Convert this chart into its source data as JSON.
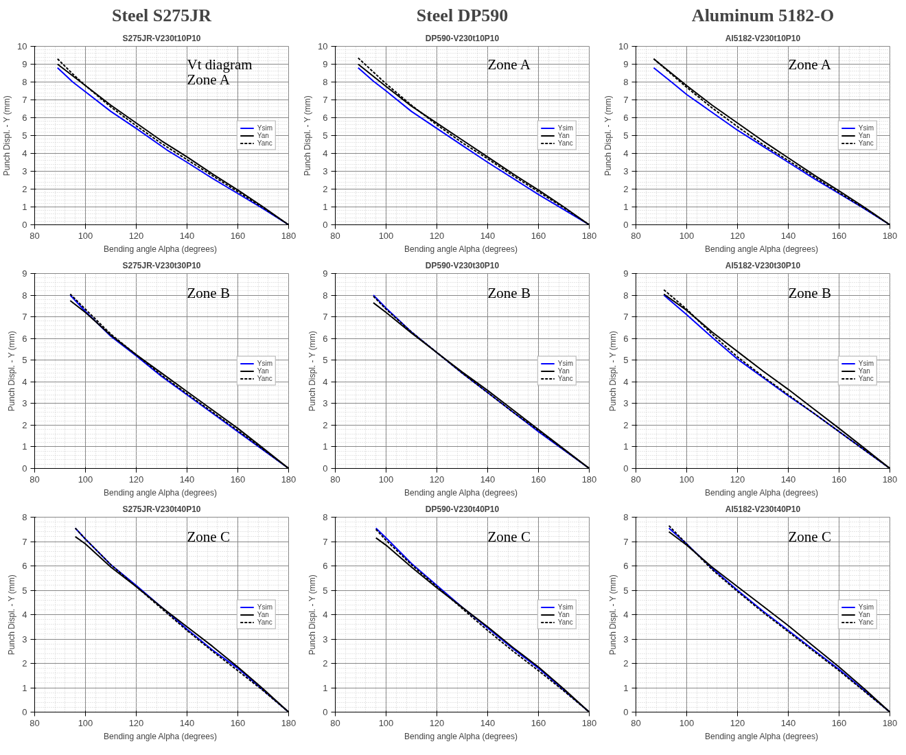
{
  "chart_data": [
    {
      "type": "line",
      "subtitle": "Steel S275JR",
      "title": "S275JR-V230t10P10",
      "xlabel": "Bending angle Alpha  (degrees)",
      "ylabel": "Punch Displ. - Y (mm)",
      "annotations": [
        "Vt diagram",
        "Zone A"
      ],
      "xlim": [
        80,
        180
      ],
      "ylim": [
        0,
        10
      ],
      "xticks": [
        80,
        100,
        120,
        140,
        160,
        180
      ],
      "yticks": [
        0,
        1,
        2,
        3,
        4,
        5,
        6,
        7,
        8,
        9,
        10
      ],
      "grid": true,
      "legend": "right",
      "marker": "none",
      "series": [
        {
          "name": "Ysim",
          "color": "#0000ff",
          "line_style": "solid",
          "x": [
            89,
            95,
            100,
            110,
            120,
            132,
            140,
            150,
            160,
            170,
            180
          ],
          "values": [
            8.8,
            8.0,
            7.45,
            6.35,
            5.4,
            4.2,
            3.5,
            2.6,
            1.75,
            0.9,
            0
          ]
        },
        {
          "name": "Yan",
          "color": "#000000",
          "line_style": "solid",
          "x": [
            89,
            100,
            110,
            120,
            130,
            140,
            150,
            160,
            170,
            180
          ],
          "values": [
            9.0,
            7.8,
            6.7,
            5.7,
            4.7,
            3.8,
            2.85,
            1.95,
            1.0,
            0
          ]
        },
        {
          "name": "Yanc",
          "color": "#000000",
          "line_style": "dashed",
          "x": [
            89,
            95,
            100,
            110,
            120,
            130,
            140,
            150,
            160,
            170,
            180
          ],
          "values": [
            9.3,
            8.45,
            7.8,
            6.6,
            5.55,
            4.55,
            3.65,
            2.75,
            1.85,
            0.95,
            0
          ]
        }
      ]
    },
    {
      "type": "line",
      "subtitle": "Steel DP590",
      "title": "DP590-V230t10P10",
      "xlabel": "Bending angle Alpha  (degrees)",
      "ylabel": "Punch Displ. - Y (mm)",
      "annotations": [
        "Zone A"
      ],
      "xlim": [
        80,
        180
      ],
      "ylim": [
        0,
        10
      ],
      "xticks": [
        80,
        100,
        120,
        140,
        160,
        180
      ],
      "yticks": [
        0,
        1,
        2,
        3,
        4,
        5,
        6,
        7,
        8,
        9,
        10
      ],
      "grid": true,
      "legend": "right",
      "marker": "none",
      "series": [
        {
          "name": "Ysim",
          "color": "#0000ff",
          "line_style": "solid",
          "x": [
            89,
            95,
            100,
            110,
            120,
            130,
            140,
            150,
            160,
            170,
            180
          ],
          "values": [
            8.8,
            8.05,
            7.5,
            6.35,
            5.4,
            4.45,
            3.5,
            2.6,
            1.7,
            0.85,
            0
          ]
        },
        {
          "name": "Yan",
          "color": "#000000",
          "line_style": "solid",
          "x": [
            89,
            100,
            110,
            120,
            130,
            140,
            150,
            160,
            170,
            180
          ],
          "values": [
            9.0,
            7.75,
            6.65,
            5.7,
            4.75,
            3.8,
            2.85,
            1.95,
            1.0,
            0
          ]
        },
        {
          "name": "Yanc",
          "color": "#000000",
          "line_style": "dashed",
          "x": [
            89,
            100,
            110,
            120,
            130,
            140,
            150,
            160,
            170,
            180
          ],
          "values": [
            9.35,
            7.9,
            6.7,
            5.6,
            4.6,
            3.7,
            2.75,
            1.85,
            0.95,
            0
          ]
        }
      ]
    },
    {
      "type": "line",
      "subtitle": "Aluminum 5182-O",
      "title": "Al5182-V230t10P10",
      "xlabel": "Bending angle Alpha  (degrees)",
      "ylabel": "Punch Displ. - Y (mm)",
      "annotations": [
        "Zone A"
      ],
      "xlim": [
        80,
        180
      ],
      "ylim": [
        0,
        10
      ],
      "xticks": [
        80,
        100,
        120,
        140,
        160,
        180
      ],
      "yticks": [
        0,
        1,
        2,
        3,
        4,
        5,
        6,
        7,
        8,
        9,
        10
      ],
      "grid": true,
      "legend": "right",
      "marker": "none",
      "series": [
        {
          "name": "Ysim",
          "color": "#0000ff",
          "line_style": "solid",
          "x": [
            87,
            94,
            100,
            110,
            120,
            130,
            140,
            150,
            160,
            170,
            180
          ],
          "values": [
            8.8,
            8.0,
            7.3,
            6.3,
            5.3,
            4.4,
            3.5,
            2.6,
            1.75,
            0.9,
            0
          ]
        },
        {
          "name": "Yan",
          "color": "#000000",
          "line_style": "solid",
          "x": [
            87,
            100,
            110,
            120,
            130,
            140,
            150,
            160,
            170,
            180
          ],
          "values": [
            9.3,
            7.8,
            6.7,
            5.7,
            4.7,
            3.75,
            2.8,
            1.9,
            0.98,
            0
          ]
        },
        {
          "name": "Yanc",
          "color": "#000000",
          "line_style": "dashed",
          "x": [
            87,
            100,
            110,
            120,
            130,
            140,
            150,
            160,
            170,
            180
          ],
          "values": [
            9.3,
            7.7,
            6.55,
            5.5,
            4.5,
            3.6,
            2.7,
            1.8,
            0.92,
            0
          ]
        }
      ]
    },
    {
      "type": "line",
      "title": "S275JR-V230t30P10",
      "xlabel": "Bending angle Alpha  (degrees)",
      "ylabel": "Punch Displ. - Y (mm)",
      "annotations": [
        "Zone B"
      ],
      "xlim": [
        80,
        180
      ],
      "ylim": [
        0,
        9
      ],
      "xticks": [
        80,
        100,
        120,
        140,
        160,
        180
      ],
      "yticks": [
        0,
        1,
        2,
        3,
        4,
        5,
        6,
        7,
        8,
        9
      ],
      "grid": true,
      "legend": "right",
      "marker": "none",
      "series": [
        {
          "name": "Ysim",
          "color": "#0000ff",
          "line_style": "solid",
          "x": [
            94,
            100,
            110,
            120,
            130,
            140,
            150,
            160,
            170,
            180
          ],
          "values": [
            8.0,
            7.25,
            6.1,
            5.2,
            4.25,
            3.4,
            2.55,
            1.7,
            0.85,
            0
          ]
        },
        {
          "name": "Yan",
          "color": "#000000",
          "line_style": "solid",
          "x": [
            94,
            100,
            110,
            120,
            130,
            140,
            150,
            160,
            170,
            180
          ],
          "values": [
            7.75,
            7.2,
            6.15,
            5.25,
            4.4,
            3.55,
            2.7,
            1.85,
            0.93,
            0
          ]
        },
        {
          "name": "Yanc",
          "color": "#000000",
          "line_style": "dashed",
          "x": [
            94,
            100,
            110,
            120,
            130,
            140,
            150,
            160,
            170,
            180
          ],
          "values": [
            8.05,
            7.35,
            6.2,
            5.25,
            4.3,
            3.45,
            2.6,
            1.75,
            0.88,
            0
          ]
        }
      ]
    },
    {
      "type": "line",
      "title": "DP590-V230t30P10",
      "xlabel": "Bending angle Alpha  (degrees)",
      "ylabel": "Punch Displ. - Y (mm)",
      "annotations": [
        "Zone B"
      ],
      "xlim": [
        80,
        180
      ],
      "ylim": [
        0,
        9
      ],
      "xticks": [
        80,
        100,
        120,
        140,
        160,
        180
      ],
      "yticks": [
        0,
        1,
        2,
        3,
        4,
        5,
        6,
        7,
        8,
        9
      ],
      "grid": true,
      "legend": "right",
      "marker": "none",
      "series": [
        {
          "name": "Ysim",
          "color": "#0000ff",
          "line_style": "solid",
          "x": [
            95,
            100,
            110,
            120,
            130,
            140,
            150,
            160,
            170,
            180
          ],
          "values": [
            8.0,
            7.4,
            6.3,
            5.35,
            4.4,
            3.5,
            2.6,
            1.7,
            0.85,
            0
          ]
        },
        {
          "name": "Yan",
          "color": "#000000",
          "line_style": "solid",
          "x": [
            95,
            100,
            110,
            120,
            130,
            140,
            150,
            160,
            170,
            180
          ],
          "values": [
            7.65,
            7.2,
            6.25,
            5.35,
            4.45,
            3.6,
            2.7,
            1.8,
            0.9,
            0
          ]
        },
        {
          "name": "Yanc",
          "color": "#000000",
          "line_style": "dashed",
          "x": [
            95,
            100,
            110,
            120,
            130,
            140,
            150,
            160,
            170,
            180
          ],
          "values": [
            7.95,
            7.35,
            6.3,
            5.35,
            4.4,
            3.5,
            2.6,
            1.75,
            0.87,
            0
          ]
        }
      ]
    },
    {
      "type": "line",
      "title": "Al5182-V230t30P10",
      "xlabel": "Bending angle Alpha  (degrees)",
      "ylabel": "Punch Displ. - Y (mm)",
      "annotations": [
        "Zone B"
      ],
      "xlim": [
        80,
        180
      ],
      "ylim": [
        0,
        9
      ],
      "xticks": [
        80,
        100,
        120,
        140,
        160,
        180
      ],
      "yticks": [
        0,
        1,
        2,
        3,
        4,
        5,
        6,
        7,
        8,
        9
      ],
      "grid": true,
      "legend": "right",
      "marker": "none",
      "series": [
        {
          "name": "Ysim",
          "color": "#0000ff",
          "line_style": "solid",
          "x": [
            91,
            100,
            110,
            120,
            130,
            140,
            150,
            160,
            170,
            180
          ],
          "values": [
            8.0,
            7.1,
            6.05,
            5.05,
            4.2,
            3.35,
            2.55,
            1.7,
            0.85,
            0
          ]
        },
        {
          "name": "Yan",
          "color": "#000000",
          "line_style": "solid",
          "x": [
            91,
            100,
            110,
            120,
            130,
            140,
            150,
            160,
            170,
            180
          ],
          "values": [
            8.05,
            7.3,
            6.3,
            5.4,
            4.5,
            3.65,
            2.75,
            1.85,
            0.93,
            0
          ]
        },
        {
          "name": "Yanc",
          "color": "#000000",
          "line_style": "dashed",
          "x": [
            91,
            100,
            110,
            120,
            130,
            140,
            150,
            160,
            170,
            180
          ],
          "values": [
            8.25,
            7.35,
            6.2,
            5.15,
            4.25,
            3.4,
            2.55,
            1.7,
            0.85,
            0
          ]
        }
      ]
    },
    {
      "type": "line",
      "title": "S275JR-V230t40P10",
      "xlabel": "Bending angle Alpha  (degrees)",
      "ylabel": "Punch Displ. - Y (mm)",
      "annotations": [
        "Zone C"
      ],
      "xlim": [
        80,
        180
      ],
      "ylim": [
        0,
        8
      ],
      "xticks": [
        80,
        100,
        120,
        140,
        160,
        180
      ],
      "yticks": [
        0,
        1,
        2,
        3,
        4,
        5,
        6,
        7,
        8
      ],
      "grid": true,
      "legend": "right",
      "marker": "none",
      "series": [
        {
          "name": "Ysim",
          "color": "#0000ff",
          "line_style": "solid",
          "x": [
            96,
            100,
            110,
            120,
            130,
            140,
            150,
            160,
            170,
            180
          ],
          "values": [
            7.55,
            7.1,
            6.05,
            5.2,
            4.3,
            3.4,
            2.55,
            1.8,
            0.9,
            0
          ]
        },
        {
          "name": "Yan",
          "color": "#000000",
          "line_style": "solid",
          "x": [
            96,
            100,
            110,
            120,
            130,
            140,
            150,
            160,
            170,
            180
          ],
          "values": [
            7.2,
            6.9,
            5.95,
            5.15,
            4.3,
            3.5,
            2.7,
            1.85,
            0.95,
            0
          ]
        },
        {
          "name": "Yanc",
          "color": "#000000",
          "line_style": "dashed",
          "x": [
            96,
            100,
            110,
            120,
            130,
            140,
            150,
            160,
            170,
            180
          ],
          "values": [
            7.55,
            7.1,
            6.05,
            5.15,
            4.25,
            3.35,
            2.5,
            1.7,
            0.88,
            0
          ]
        }
      ]
    },
    {
      "type": "line",
      "title": "DP590-V230t40P10",
      "xlabel": "Bending angle Alpha  (degrees)",
      "ylabel": "Punch Displ. - Y (mm)",
      "annotations": [
        "Zone C"
      ],
      "xlim": [
        80,
        180
      ],
      "ylim": [
        0,
        8
      ],
      "xticks": [
        80,
        100,
        120,
        140,
        160,
        180
      ],
      "yticks": [
        0,
        1,
        2,
        3,
        4,
        5,
        6,
        7,
        8
      ],
      "grid": true,
      "legend": "right",
      "marker": "none",
      "series": [
        {
          "name": "Ysim",
          "color": "#0000ff",
          "line_style": "solid",
          "x": [
            96,
            100,
            110,
            120,
            130,
            140,
            150,
            160,
            170,
            180
          ],
          "values": [
            7.55,
            7.15,
            6.1,
            5.2,
            4.3,
            3.45,
            2.6,
            1.8,
            0.9,
            0
          ]
        },
        {
          "name": "Yan",
          "color": "#000000",
          "line_style": "solid",
          "x": [
            96,
            100,
            110,
            120,
            130,
            140,
            150,
            160,
            170,
            180
          ],
          "values": [
            7.15,
            6.85,
            5.95,
            5.1,
            4.3,
            3.5,
            2.65,
            1.85,
            0.95,
            0
          ]
        },
        {
          "name": "Yanc",
          "color": "#000000",
          "line_style": "dashed",
          "x": [
            96,
            100,
            110,
            120,
            130,
            140,
            150,
            160,
            170,
            180
          ],
          "values": [
            7.5,
            7.05,
            6.05,
            5.15,
            4.25,
            3.35,
            2.5,
            1.7,
            0.87,
            0
          ]
        }
      ]
    },
    {
      "type": "line",
      "title": "Al5182-V230t40P10",
      "xlabel": "Bending angle Alpha  (degrees)",
      "ylabel": "Punch Displ. - Y (mm)",
      "annotations": [
        "Zone C"
      ],
      "xlim": [
        80,
        180
      ],
      "ylim": [
        0,
        8
      ],
      "xticks": [
        80,
        100,
        120,
        140,
        160,
        180
      ],
      "yticks": [
        0,
        1,
        2,
        3,
        4,
        5,
        6,
        7,
        8
      ],
      "grid": true,
      "legend": "right",
      "marker": "none",
      "series": [
        {
          "name": "Ysim",
          "color": "#0000ff",
          "line_style": "solid",
          "x": [
            93,
            100,
            110,
            120,
            130,
            140,
            150,
            160,
            170,
            180
          ],
          "values": [
            7.55,
            6.9,
            5.9,
            5.0,
            4.15,
            3.35,
            2.55,
            1.75,
            0.88,
            0
          ]
        },
        {
          "name": "Yan",
          "color": "#000000",
          "line_style": "solid",
          "x": [
            93,
            100,
            110,
            120,
            130,
            140,
            150,
            160,
            170,
            180
          ],
          "values": [
            7.4,
            6.85,
            5.95,
            5.15,
            4.35,
            3.55,
            2.7,
            1.85,
            0.95,
            0
          ]
        },
        {
          "name": "Yanc",
          "color": "#000000",
          "line_style": "dashed",
          "x": [
            93,
            100,
            110,
            120,
            130,
            140,
            150,
            160,
            170,
            180
          ],
          "values": [
            7.65,
            6.9,
            5.85,
            4.95,
            4.1,
            3.3,
            2.5,
            1.7,
            0.85,
            0
          ]
        }
      ]
    }
  ]
}
